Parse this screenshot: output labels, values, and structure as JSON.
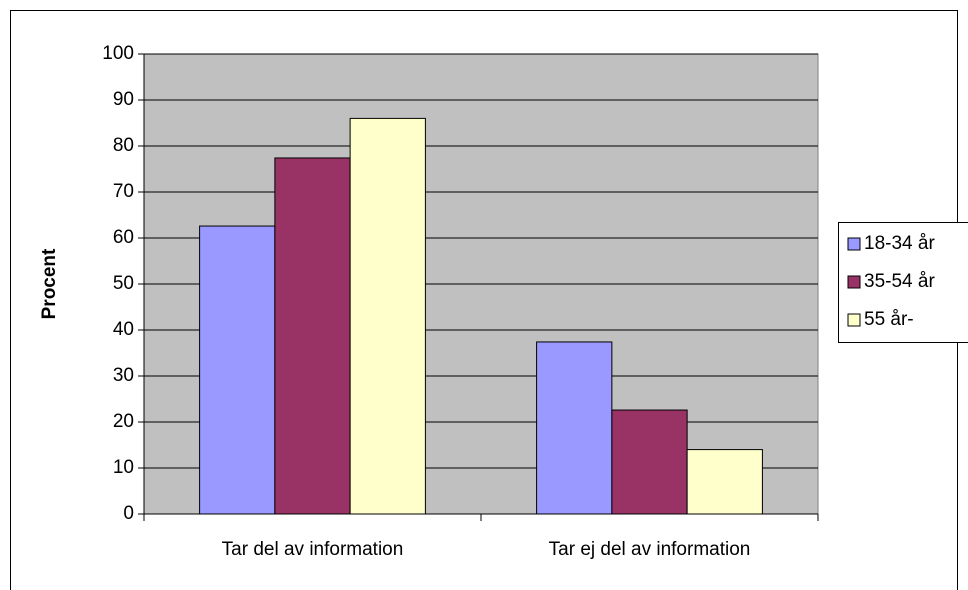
{
  "chart_data": {
    "type": "bar",
    "y_label": "Procent",
    "categories": [
      "Tar del av information",
      "Tar ej del av information"
    ],
    "series": [
      {
        "name": "18-34 år",
        "color": "#9999ff",
        "values": [
          62.6,
          37.4
        ]
      },
      {
        "name": "35-54 år",
        "color": "#993366",
        "values": [
          77.4,
          22.6
        ]
      },
      {
        "name": "55 år-",
        "color": "#ffffcc",
        "values": [
          86,
          14
        ]
      }
    ],
    "ylim": [
      0,
      100
    ],
    "yticks": [
      0,
      10,
      20,
      30,
      40,
      50,
      60,
      70,
      80,
      90,
      100
    ],
    "grid": true,
    "legend": "right",
    "plot_background": "#c0c0c0"
  }
}
